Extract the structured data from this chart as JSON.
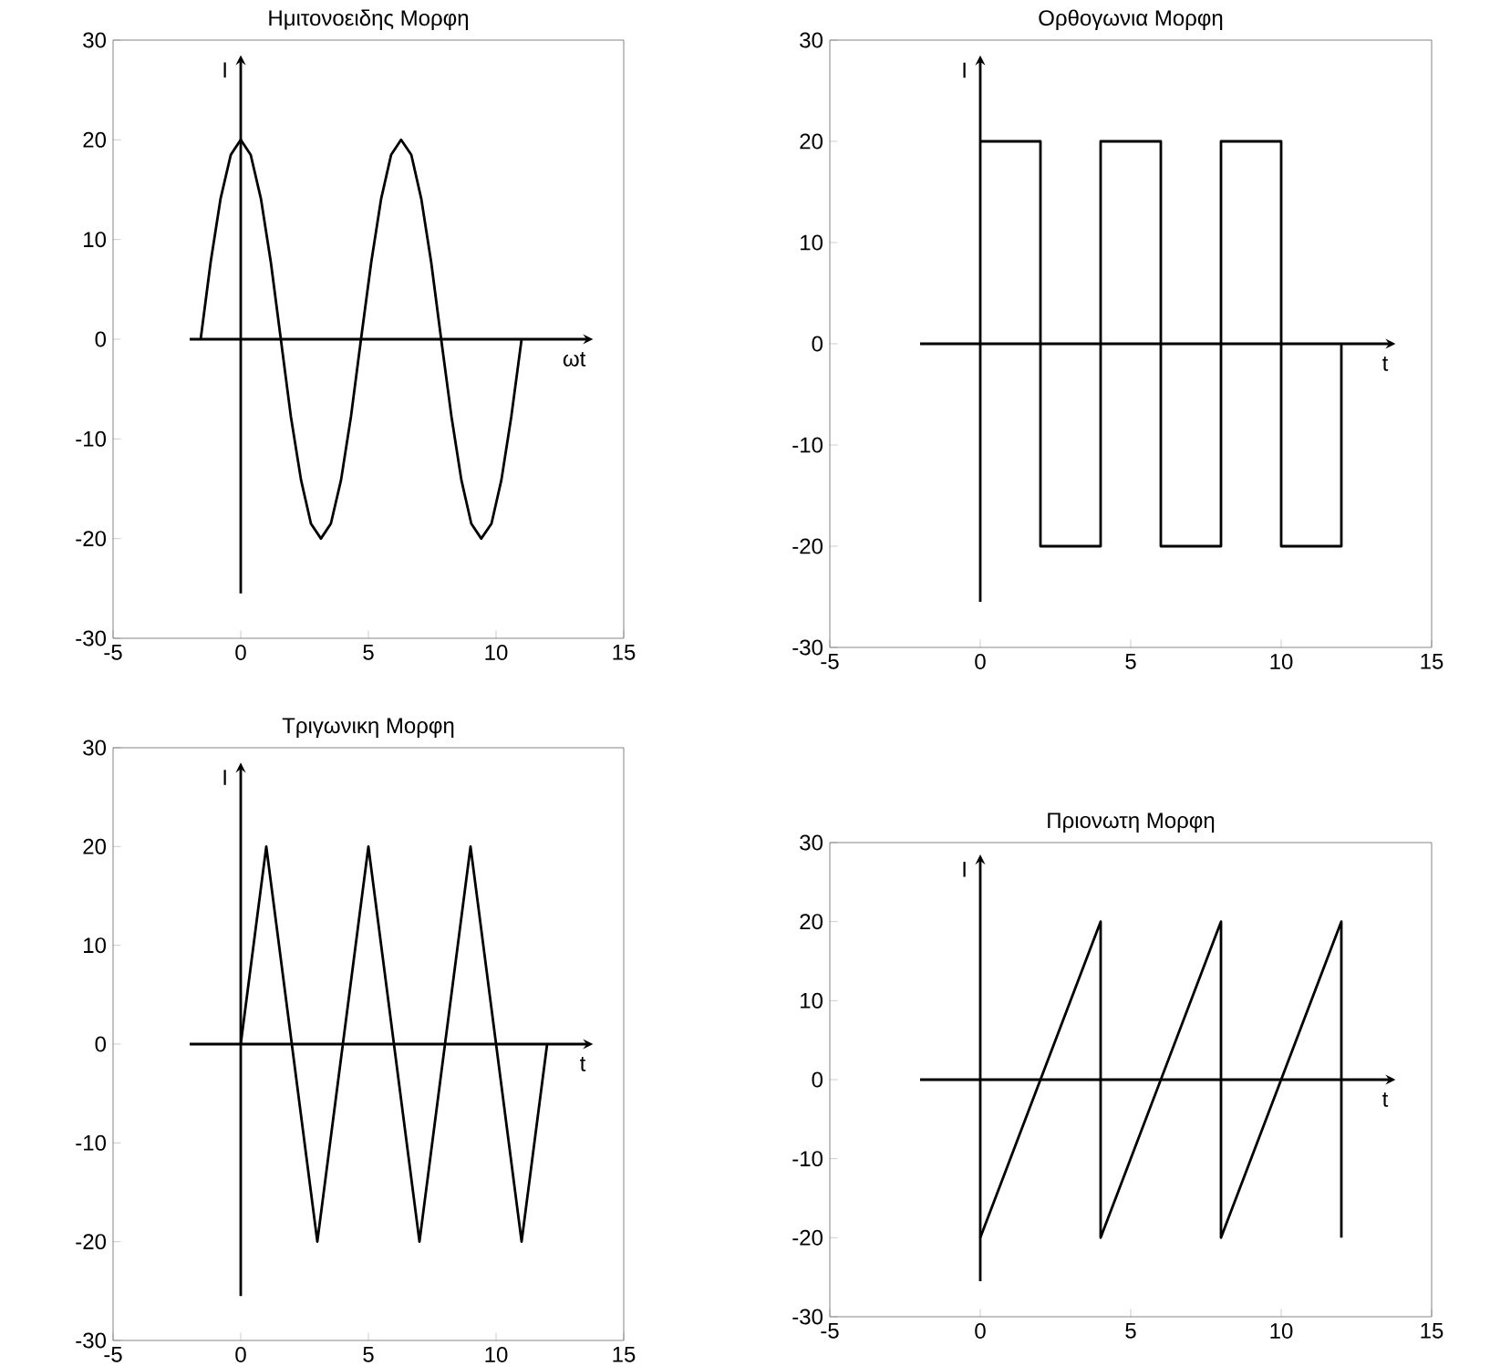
{
  "chart_data": [
    {
      "type": "line",
      "title": "Ημιτονοειδης Μορφη",
      "xlim": [
        -5,
        15
      ],
      "ylim": [
        -30,
        30
      ],
      "xticks": [
        -5,
        0,
        5,
        10,
        15
      ],
      "yticks": [
        -30,
        -20,
        -10,
        0,
        10,
        20,
        30
      ],
      "line_style": "solid",
      "marker": "none",
      "series": [
        {
          "color": "#000000",
          "x": [
            -1.57,
            -1.18,
            -0.79,
            -0.39,
            0,
            0.39,
            0.79,
            1.18,
            1.57,
            1.96,
            2.36,
            2.75,
            3.14,
            3.53,
            3.93,
            4.32,
            4.71,
            5.11,
            5.5,
            5.89,
            6.28,
            6.68,
            7.07,
            7.46,
            7.85,
            8.25,
            8.64,
            9.03,
            9.42,
            9.82,
            10.21,
            10.6,
            11.0
          ],
          "values": [
            0,
            7.7,
            14.1,
            18.5,
            20,
            18.5,
            14.1,
            7.7,
            0,
            -7.7,
            -14.1,
            -18.5,
            -20,
            -18.5,
            -14.1,
            -7.7,
            0,
            7.7,
            14.1,
            18.5,
            20,
            18.5,
            14.1,
            7.7,
            0,
            -7.7,
            -14.1,
            -18.5,
            -20,
            -18.5,
            -14.1,
            -7.7,
            0
          ]
        }
      ],
      "ref_lines": [
        {
          "axis": "x",
          "value": 0,
          "label": "I"
        },
        {
          "axis": "y",
          "value": 0,
          "label": "ωt"
        }
      ]
    },
    {
      "type": "line",
      "title": "Ορθογωνια Μορφη",
      "xlim": [
        -5,
        15
      ],
      "ylim": [
        -30,
        30
      ],
      "xticks": [
        -5,
        0,
        5,
        10,
        15
      ],
      "yticks": [
        -30,
        -20,
        -10,
        0,
        10,
        20,
        30
      ],
      "line_style": "solid",
      "marker": "none",
      "series": [
        {
          "color": "#000000",
          "x": [
            0,
            2,
            2,
            4,
            4,
            6,
            6,
            8,
            8,
            10,
            10,
            12,
            12
          ],
          "values": [
            20,
            20,
            -20,
            -20,
            20,
            20,
            -20,
            -20,
            20,
            20,
            -20,
            -20,
            0
          ]
        }
      ],
      "ref_lines": [
        {
          "axis": "x",
          "value": 0,
          "label": "I"
        },
        {
          "axis": "y",
          "value": 0,
          "label": "t"
        }
      ]
    },
    {
      "type": "line",
      "title": "Τριγωνικη Μορφη",
      "xlim": [
        -5,
        15
      ],
      "ylim": [
        -30,
        30
      ],
      "xticks": [
        -5,
        0,
        5,
        10,
        15
      ],
      "yticks": [
        -30,
        -20,
        -10,
        0,
        10,
        20,
        30
      ],
      "line_style": "solid",
      "marker": "none",
      "series": [
        {
          "color": "#000000",
          "x": [
            0,
            1,
            3,
            5,
            7,
            9,
            11,
            12
          ],
          "values": [
            0,
            20,
            -20,
            20,
            -20,
            20,
            -20,
            0
          ]
        }
      ],
      "ref_lines": [
        {
          "axis": "x",
          "value": 0,
          "label": "I"
        },
        {
          "axis": "y",
          "value": 0,
          "label": "t"
        }
      ]
    },
    {
      "type": "line",
      "title": "Πριονωτη Μορφη",
      "xlim": [
        -5,
        15
      ],
      "ylim": [
        -30,
        30
      ],
      "xticks": [
        -5,
        0,
        5,
        10,
        15
      ],
      "yticks": [
        -30,
        -20,
        -10,
        0,
        10,
        20,
        30
      ],
      "line_style": "solid",
      "marker": "none",
      "series": [
        {
          "color": "#000000",
          "x": [
            0,
            4,
            4,
            8,
            8,
            12,
            12
          ],
          "values": [
            -20,
            20,
            -20,
            20,
            -20,
            20,
            -20
          ]
        }
      ],
      "ref_lines": [
        {
          "axis": "x",
          "value": 0,
          "label": "I"
        },
        {
          "axis": "y",
          "value": 0,
          "label": "t"
        }
      ]
    }
  ]
}
